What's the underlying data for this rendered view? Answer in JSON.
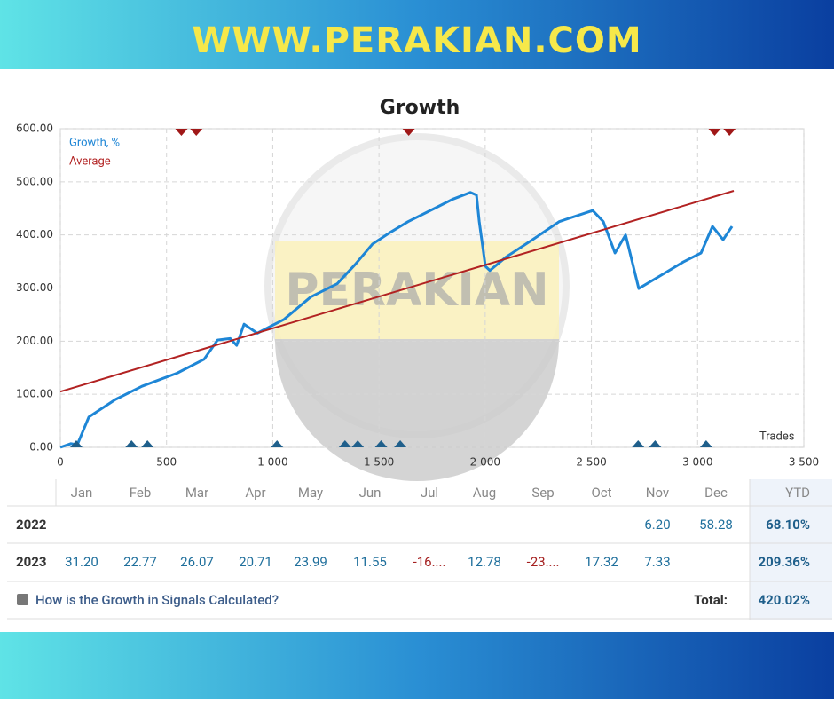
{
  "header": {
    "title": "WWW.PERAKIAN.COM"
  },
  "chart_data": {
    "type": "line",
    "title": "Growth",
    "watermark": "PERAKIAN",
    "x_label": "Trades",
    "xlim": [
      0,
      3500
    ],
    "xticks": [
      0,
      500,
      {
        "value": 1000,
        "label": "1 000"
      },
      {
        "value": 1500,
        "label": "1 500"
      },
      {
        "value": 2000,
        "label": "2 000"
      },
      {
        "value": 2500,
        "label": "2 500"
      },
      {
        "value": 3000,
        "label": "3 000"
      },
      {
        "value": 3500,
        "label": "3 500"
      }
    ],
    "ylim": [
      0,
      600
    ],
    "yticks": [
      {
        "value": 0,
        "label": "0.00"
      },
      {
        "value": 100,
        "label": "100.00"
      },
      {
        "value": 200,
        "label": "200.00"
      },
      {
        "value": 300,
        "label": "300.00"
      },
      {
        "value": 400,
        "label": "400.00"
      },
      {
        "value": 500,
        "label": "500.00"
      },
      {
        "value": 600,
        "label": "600.00"
      }
    ],
    "grid": true,
    "legend": "top-left",
    "series": [
      {
        "name": "Growth, %",
        "color": "#1e86d6",
        "x": [
          0,
          50,
          80,
          134,
          259,
          384,
          551,
          677,
          740,
          800,
          830,
          865,
          927,
          1053,
          1178,
          1303,
          1387,
          1470,
          1554,
          1637,
          1762,
          1846,
          1930,
          1959,
          1972,
          2001,
          2022,
          2097,
          2223,
          2348,
          2506,
          2556,
          2611,
          2661,
          2723,
          2828,
          2932,
          3016,
          3070,
          3120,
          3162
        ],
        "values": [
          0,
          7,
          5,
          57,
          90,
          115,
          140,
          166,
          202,
          205,
          192,
          232,
          215,
          241,
          283,
          308,
          344,
          383,
          405,
          425,
          450,
          467,
          480,
          475,
          425,
          341,
          333,
          358,
          391,
          425,
          446,
          425,
          366,
          400,
          299,
          324,
          349,
          366,
          416,
          391,
          416
        ]
      },
      {
        "name": "Average",
        "color": "#b22222",
        "x": [
          0,
          3170
        ],
        "values": [
          105,
          483
        ]
      }
    ],
    "markers": [
      {
        "position": "bottom",
        "color": "#1f5f8b",
        "x": [
          75,
          335,
          410,
          1020,
          1340,
          1400,
          1510,
          1600,
          2720,
          2800,
          3040
        ]
      },
      {
        "position": "top",
        "color": "#a01818",
        "x": [
          570,
          640,
          1640,
          3080,
          3150
        ]
      }
    ]
  },
  "table": {
    "header": [
      null,
      "Jan",
      "Feb",
      "Mar",
      "Apr",
      "May",
      "Jun",
      "Jul",
      "Aug",
      "Sep",
      "Oct",
      "Nov",
      "Dec",
      "YTD"
    ],
    "rows": [
      [
        "2022",
        null,
        null,
        null,
        null,
        null,
        null,
        null,
        null,
        null,
        null,
        "6.20",
        "58.28",
        "68.10%"
      ],
      [
        "2023",
        "31.20",
        "22.77",
        "26.07",
        "20.71",
        "23.99",
        "11.55",
        "-16....",
        "12.78",
        "-23....",
        "17.32",
        "7.33",
        null,
        "209.36%"
      ]
    ],
    "footer": {
      "link": "How is the Growth in Signals Calculated?",
      "total_label": "Total:",
      "total": "420.02%"
    }
  }
}
